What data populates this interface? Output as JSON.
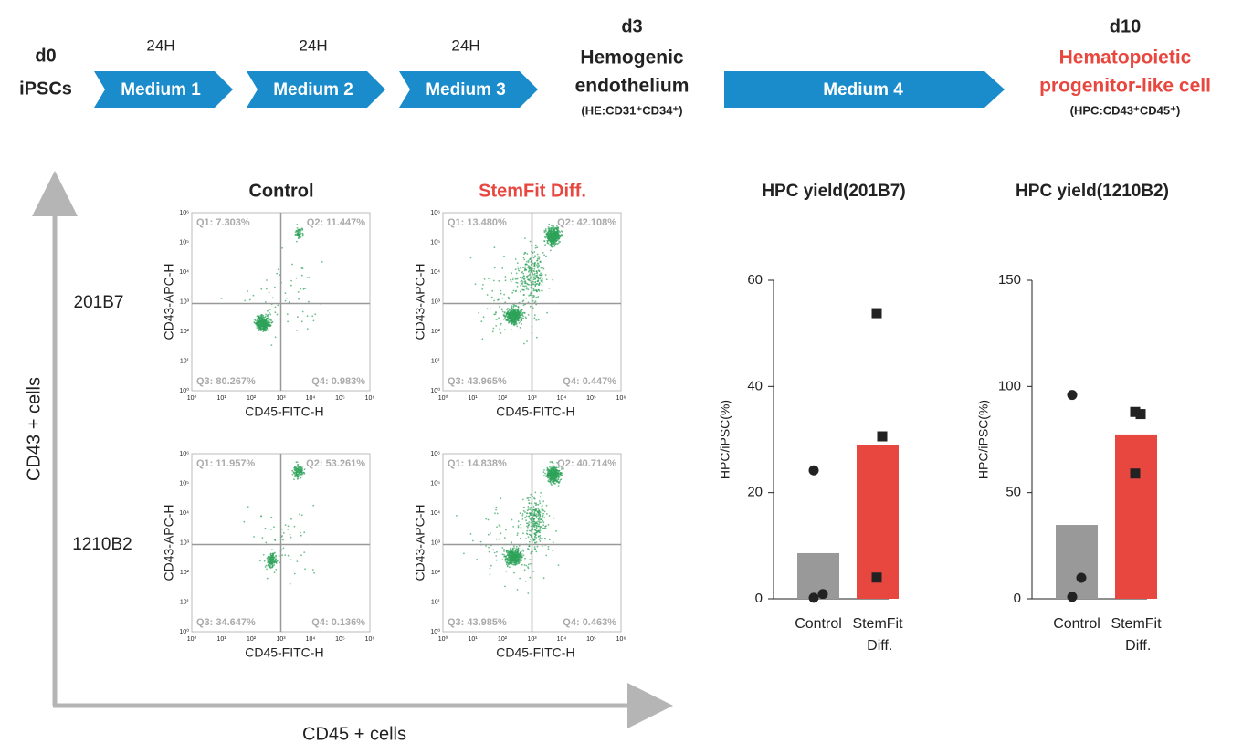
{
  "timeline": {
    "start": {
      "day": "d0",
      "label": "iPSCs"
    },
    "steps": [
      {
        "time": "24H",
        "label": "Medium 1"
      },
      {
        "time": "24H",
        "label": "Medium 2"
      },
      {
        "time": "24H",
        "label": "Medium 3"
      }
    ],
    "mid": {
      "day": "d3",
      "lines": [
        "Hemogenic",
        "endothelium"
      ],
      "marker": "(HE:CD31⁺CD34⁺)"
    },
    "long_step": "Medium 4",
    "end": {
      "day": "d10",
      "lines": [
        "Hematopoietic",
        "progenitor-like cell"
      ],
      "marker": "(HPC:CD43⁺CD45⁺)"
    }
  },
  "flow": {
    "y_axis_label": "CD43 + cells",
    "x_axis_label": "CD45 + cells",
    "columns": [
      "Control",
      "StemFit Diff."
    ],
    "rows": [
      "201B7",
      "1210B2"
    ],
    "plot_x_label": "CD45-FITC-H",
    "plot_y_label": "CD43-APC-H",
    "decades": [
      "10⁰",
      "10¹",
      "10²",
      "10³",
      "10⁴",
      "10⁵",
      "10⁶"
    ],
    "plots": [
      [
        [
          "Q1: 7.303%",
          "Q2: 11.447%",
          "Q3: 80.267%",
          "Q4: 0.983%"
        ],
        [
          "Q1: 13.480%",
          "Q2: 42.108%",
          "Q3: 43.965%",
          "Q4: 0.447%"
        ]
      ],
      [
        [
          "Q1: 11.957%",
          "Q2: 53.261%",
          "Q3: 34.647%",
          "Q4: 0.136%"
        ],
        [
          "Q1: 14.838%",
          "Q2: 40.714%",
          "Q3: 43.985%",
          "Q4: 0.463%"
        ]
      ]
    ]
  },
  "chart_data": [
    {
      "type": "bar",
      "title": "HPC yield(201B7)",
      "ylabel": "HPC/iPSC(%)",
      "categories": [
        "Control",
        "StemFit Diff."
      ],
      "colors": [
        "#999999",
        "#e8473f"
      ],
      "values": [
        8.6,
        29
      ],
      "points": [
        [
          24.2,
          0.9,
          0.2
        ],
        [
          53.8,
          30.6,
          4
        ]
      ],
      "ylim": [
        0,
        60
      ],
      "yticks": [
        0,
        20,
        40,
        60
      ]
    },
    {
      "type": "bar",
      "title": "HPC yield(1210B2)",
      "ylabel": "HPC/iPSC(%)",
      "categories": [
        "Control",
        "StemFit Diff."
      ],
      "colors": [
        "#999999",
        "#e8473f"
      ],
      "values": [
        34.8,
        77.4
      ],
      "points": [
        [
          96,
          9.9,
          0.9
        ],
        [
          88,
          87,
          59
        ]
      ],
      "ylim": [
        0,
        150
      ],
      "yticks": [
        0,
        50,
        100,
        150
      ]
    }
  ]
}
